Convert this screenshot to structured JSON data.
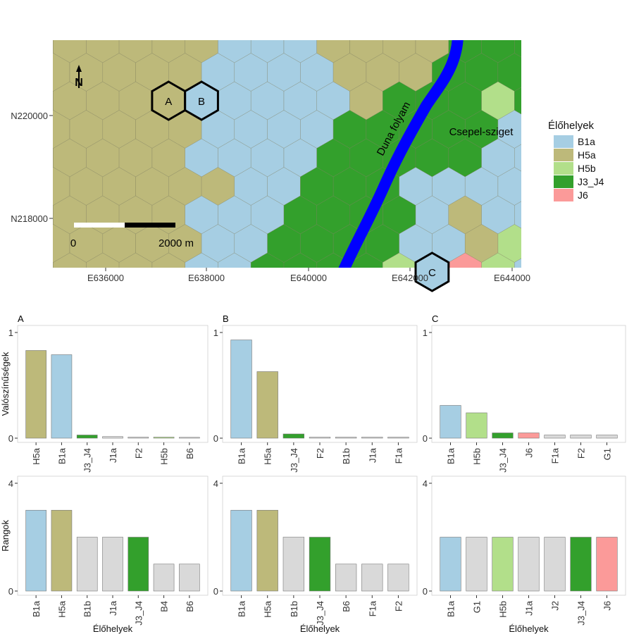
{
  "colors": {
    "B1a": "#a6cee3",
    "H5a": "#bdb97a",
    "H5b": "#b2df8a",
    "J3_J4": "#33a02c",
    "J6": "#fb9a99",
    "other": "#d9d9d9",
    "river": "#0000ff"
  },
  "map": {
    "x_ticks": [
      "E636000",
      "E638000",
      "E640000",
      "E642000",
      "E644000"
    ],
    "y_ticks": [
      "N220000",
      "N218000"
    ],
    "river_label": "Duna folyam",
    "island_label": "Csepel-sziget",
    "scalebar_start": "0",
    "scalebar_end": "2000 m",
    "north_label": "N",
    "highlight_cells": [
      {
        "label": "A",
        "habitat": "H5a"
      },
      {
        "label": "B",
        "habitat": "B1a"
      },
      {
        "label": "C",
        "habitat": "B1a"
      }
    ]
  },
  "legend": {
    "title": "Élőhelyek",
    "items": [
      "B1a",
      "H5a",
      "H5b",
      "J3_J4",
      "J6"
    ]
  },
  "chart_data": [
    {
      "panel": "A",
      "type": "bar",
      "ylabel": "Valószínűségek",
      "ylim": [
        0,
        1
      ],
      "yticks": [
        "0",
        "1"
      ],
      "categories": [
        "H5a",
        "B1a",
        "J3_J4",
        "J1a",
        "F2",
        "H5b",
        "B6"
      ],
      "values": [
        0.83,
        0.79,
        0.03,
        0.015,
        0.01,
        0.01,
        0.005
      ]
    },
    {
      "panel": "B",
      "type": "bar",
      "ylabel": "",
      "ylim": [
        0,
        1
      ],
      "yticks": [
        "0",
        "1"
      ],
      "categories": [
        "B1a",
        "H5a",
        "J3_J4",
        "F2",
        "B1b",
        "J1a",
        "F1a"
      ],
      "values": [
        0.93,
        0.63,
        0.04,
        0.01,
        0.01,
        0.01,
        0.01
      ]
    },
    {
      "panel": "C",
      "type": "bar",
      "ylabel": "",
      "ylim": [
        0,
        1
      ],
      "yticks": [
        "0",
        "1"
      ],
      "categories": [
        "B1a",
        "H5b",
        "J3_J4",
        "J6",
        "F1a",
        "F2",
        "G1"
      ],
      "values": [
        0.31,
        0.24,
        0.05,
        0.05,
        0.03,
        0.03,
        0.03
      ]
    },
    {
      "panel": "A",
      "type": "bar",
      "ylabel": "Rangok",
      "xlabel": "Élőhelyek",
      "ylim": [
        0,
        4
      ],
      "yticks": [
        "0",
        "4"
      ],
      "categories": [
        "B1a",
        "H5a",
        "B1b",
        "J1a",
        "J3_J4",
        "B4",
        "B6"
      ],
      "values": [
        3,
        3,
        2,
        2,
        2,
        1,
        1
      ]
    },
    {
      "panel": "B",
      "type": "bar",
      "ylabel": "",
      "xlabel": "Élőhelyek",
      "ylim": [
        0,
        4
      ],
      "yticks": [
        "0",
        "4"
      ],
      "categories": [
        "B1a",
        "H5a",
        "B1b",
        "J3_J4",
        "B6",
        "F1a",
        "F2"
      ],
      "values": [
        3,
        3,
        2,
        2,
        1,
        1,
        1
      ]
    },
    {
      "panel": "C",
      "type": "bar",
      "ylabel": "",
      "xlabel": "Élőhelyek",
      "ylim": [
        0,
        4
      ],
      "yticks": [
        "0",
        "4"
      ],
      "categories": [
        "B1a",
        "G1",
        "H5b",
        "J1a",
        "J2",
        "J3_J4",
        "J6"
      ],
      "values": [
        2,
        2,
        2,
        2,
        2,
        2,
        2
      ]
    }
  ]
}
